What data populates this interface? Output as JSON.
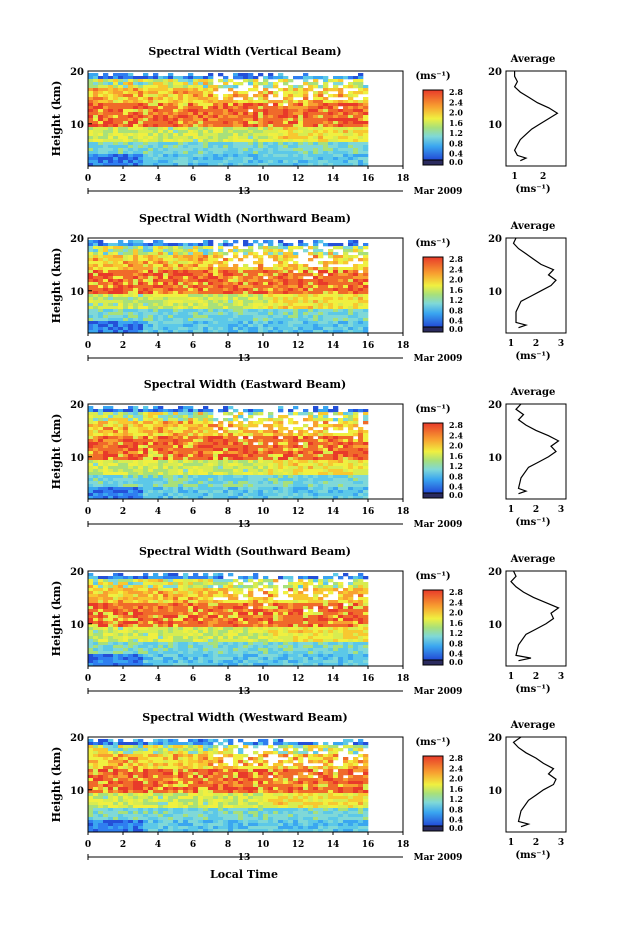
{
  "figure": {
    "xlabel": "Local Time",
    "date_label": "Mar 2009",
    "day_label": "13",
    "colorbar_unit": "(ms⁻¹)",
    "average_title": "Average",
    "average_xlabel": "(ms⁻¹)"
  },
  "chart_data": [
    {
      "type": "heatmap",
      "title": "Spectral Width (Vertical Beam)",
      "ylabel": "Height (km)",
      "xlim": [
        0,
        18
      ],
      "xticks": [
        0,
        2,
        4,
        6,
        8,
        10,
        12,
        14,
        16,
        18
      ],
      "ylim": [
        2,
        20
      ],
      "yticks": [
        10,
        20
      ],
      "data_end_hour": 16,
      "colorbar": {
        "ticks": [
          "2.8",
          "2.4",
          "2.0",
          "1.6",
          "1.2",
          "0.8",
          "0.4",
          "0.0"
        ]
      },
      "average": {
        "xticks": [
          1,
          2
        ],
        "xlim": [
          0.7,
          2.8
        ],
        "profile": [
          [
            1.2,
            3
          ],
          [
            1.4,
            3.5
          ],
          [
            1.1,
            4
          ],
          [
            1.0,
            5
          ],
          [
            1.1,
            6
          ],
          [
            1.2,
            7
          ],
          [
            1.4,
            8
          ],
          [
            1.6,
            9
          ],
          [
            1.9,
            10
          ],
          [
            2.2,
            11
          ],
          [
            2.5,
            12
          ],
          [
            2.2,
            13
          ],
          [
            1.8,
            14
          ],
          [
            1.5,
            15
          ],
          [
            1.2,
            16
          ],
          [
            1.0,
            17
          ],
          [
            1.1,
            18
          ],
          [
            1.0,
            19
          ],
          [
            1.0,
            20
          ]
        ]
      }
    },
    {
      "type": "heatmap",
      "title": "Spectral Width (Northward Beam)",
      "ylabel": "Height (km)",
      "xlim": [
        0,
        18
      ],
      "xticks": [
        0,
        2,
        4,
        6,
        8,
        10,
        12,
        14,
        16,
        18
      ],
      "ylim": [
        2,
        20
      ],
      "yticks": [
        10,
        20
      ],
      "data_end_hour": 16,
      "colorbar": {
        "ticks": [
          "2.8",
          "2.4",
          "2.0",
          "1.6",
          "1.2",
          "0.8",
          "0.4",
          "0.0"
        ]
      },
      "average": {
        "xticks": [
          1,
          2,
          3
        ],
        "xlim": [
          0.8,
          3.2
        ],
        "profile": [
          [
            1.3,
            3
          ],
          [
            1.6,
            3.5
          ],
          [
            1.2,
            4
          ],
          [
            1.2,
            6
          ],
          [
            1.4,
            8
          ],
          [
            1.8,
            9
          ],
          [
            2.2,
            10
          ],
          [
            2.6,
            11
          ],
          [
            2.8,
            12
          ],
          [
            2.5,
            13
          ],
          [
            2.7,
            14
          ],
          [
            2.2,
            15
          ],
          [
            1.9,
            16
          ],
          [
            1.6,
            17
          ],
          [
            1.3,
            18
          ],
          [
            1.1,
            19
          ],
          [
            1.2,
            20
          ]
        ]
      }
    },
    {
      "type": "heatmap",
      "title": "Spectral Width (Eastward Beam)",
      "ylabel": "Height (km)",
      "xlim": [
        0,
        18
      ],
      "xticks": [
        0,
        2,
        4,
        6,
        8,
        10,
        12,
        14,
        16,
        18
      ],
      "ylim": [
        2,
        20
      ],
      "yticks": [
        10,
        20
      ],
      "data_end_hour": 16,
      "colorbar": {
        "ticks": [
          "2.8",
          "2.4",
          "2.0",
          "1.6",
          "1.2",
          "0.8",
          "0.4",
          "0.0"
        ]
      },
      "average": {
        "xticks": [
          1,
          2,
          3
        ],
        "xlim": [
          0.8,
          3.2
        ],
        "profile": [
          [
            1.3,
            3
          ],
          [
            1.6,
            3.5
          ],
          [
            1.3,
            4
          ],
          [
            1.4,
            6
          ],
          [
            1.7,
            8
          ],
          [
            2.1,
            9
          ],
          [
            2.5,
            10
          ],
          [
            2.8,
            11
          ],
          [
            2.6,
            12
          ],
          [
            2.9,
            13
          ],
          [
            2.5,
            14
          ],
          [
            2.0,
            15
          ],
          [
            1.6,
            16
          ],
          [
            1.3,
            17
          ],
          [
            1.5,
            18
          ],
          [
            1.2,
            19
          ],
          [
            1.4,
            20
          ]
        ]
      }
    },
    {
      "type": "heatmap",
      "title": "Spectral Width (Southward Beam)",
      "ylabel": "Height (km)",
      "xlim": [
        0,
        18
      ],
      "xticks": [
        0,
        2,
        4,
        6,
        8,
        10,
        12,
        14,
        16,
        18
      ],
      "ylim": [
        2,
        20
      ],
      "yticks": [
        10,
        20
      ],
      "data_end_hour": 16,
      "colorbar": {
        "ticks": [
          "2.8",
          "2.4",
          "2.0",
          "1.6",
          "1.2",
          "0.8",
          "0.4",
          "0.0"
        ]
      },
      "average": {
        "xticks": [
          1,
          2,
          3
        ],
        "xlim": [
          0.8,
          3.2
        ],
        "profile": [
          [
            1.3,
            3
          ],
          [
            1.8,
            3.5
          ],
          [
            1.2,
            4
          ],
          [
            1.3,
            6
          ],
          [
            1.6,
            8
          ],
          [
            2.0,
            9
          ],
          [
            2.4,
            10
          ],
          [
            2.7,
            11
          ],
          [
            2.6,
            12
          ],
          [
            2.9,
            13
          ],
          [
            2.4,
            14
          ],
          [
            1.9,
            15
          ],
          [
            1.5,
            16
          ],
          [
            1.2,
            17
          ],
          [
            1.0,
            18
          ],
          [
            1.2,
            19
          ],
          [
            1.1,
            20
          ]
        ]
      }
    },
    {
      "type": "heatmap",
      "title": "Spectral Width (Westward Beam)",
      "ylabel": "Height (km)",
      "xlim": [
        0,
        18
      ],
      "xticks": [
        0,
        2,
        4,
        6,
        8,
        10,
        12,
        14,
        16,
        18
      ],
      "ylim": [
        2,
        20
      ],
      "yticks": [
        10,
        20
      ],
      "data_end_hour": 16,
      "colorbar": {
        "ticks": [
          "2.8",
          "2.4",
          "2.0",
          "1.6",
          "1.2",
          "0.8",
          "0.4",
          "0.0"
        ]
      },
      "average": {
        "xticks": [
          1,
          2,
          3
        ],
        "xlim": [
          0.8,
          3.2
        ],
        "profile": [
          [
            1.4,
            3
          ],
          [
            1.7,
            3.5
          ],
          [
            1.3,
            4
          ],
          [
            1.4,
            6
          ],
          [
            1.7,
            8
          ],
          [
            2.0,
            9
          ],
          [
            2.3,
            10
          ],
          [
            2.7,
            11
          ],
          [
            2.8,
            12
          ],
          [
            2.5,
            13
          ],
          [
            2.7,
            14
          ],
          [
            2.3,
            15
          ],
          [
            2.0,
            16
          ],
          [
            1.6,
            17
          ],
          [
            1.3,
            18
          ],
          [
            1.1,
            19
          ],
          [
            1.4,
            20
          ]
        ]
      }
    }
  ]
}
